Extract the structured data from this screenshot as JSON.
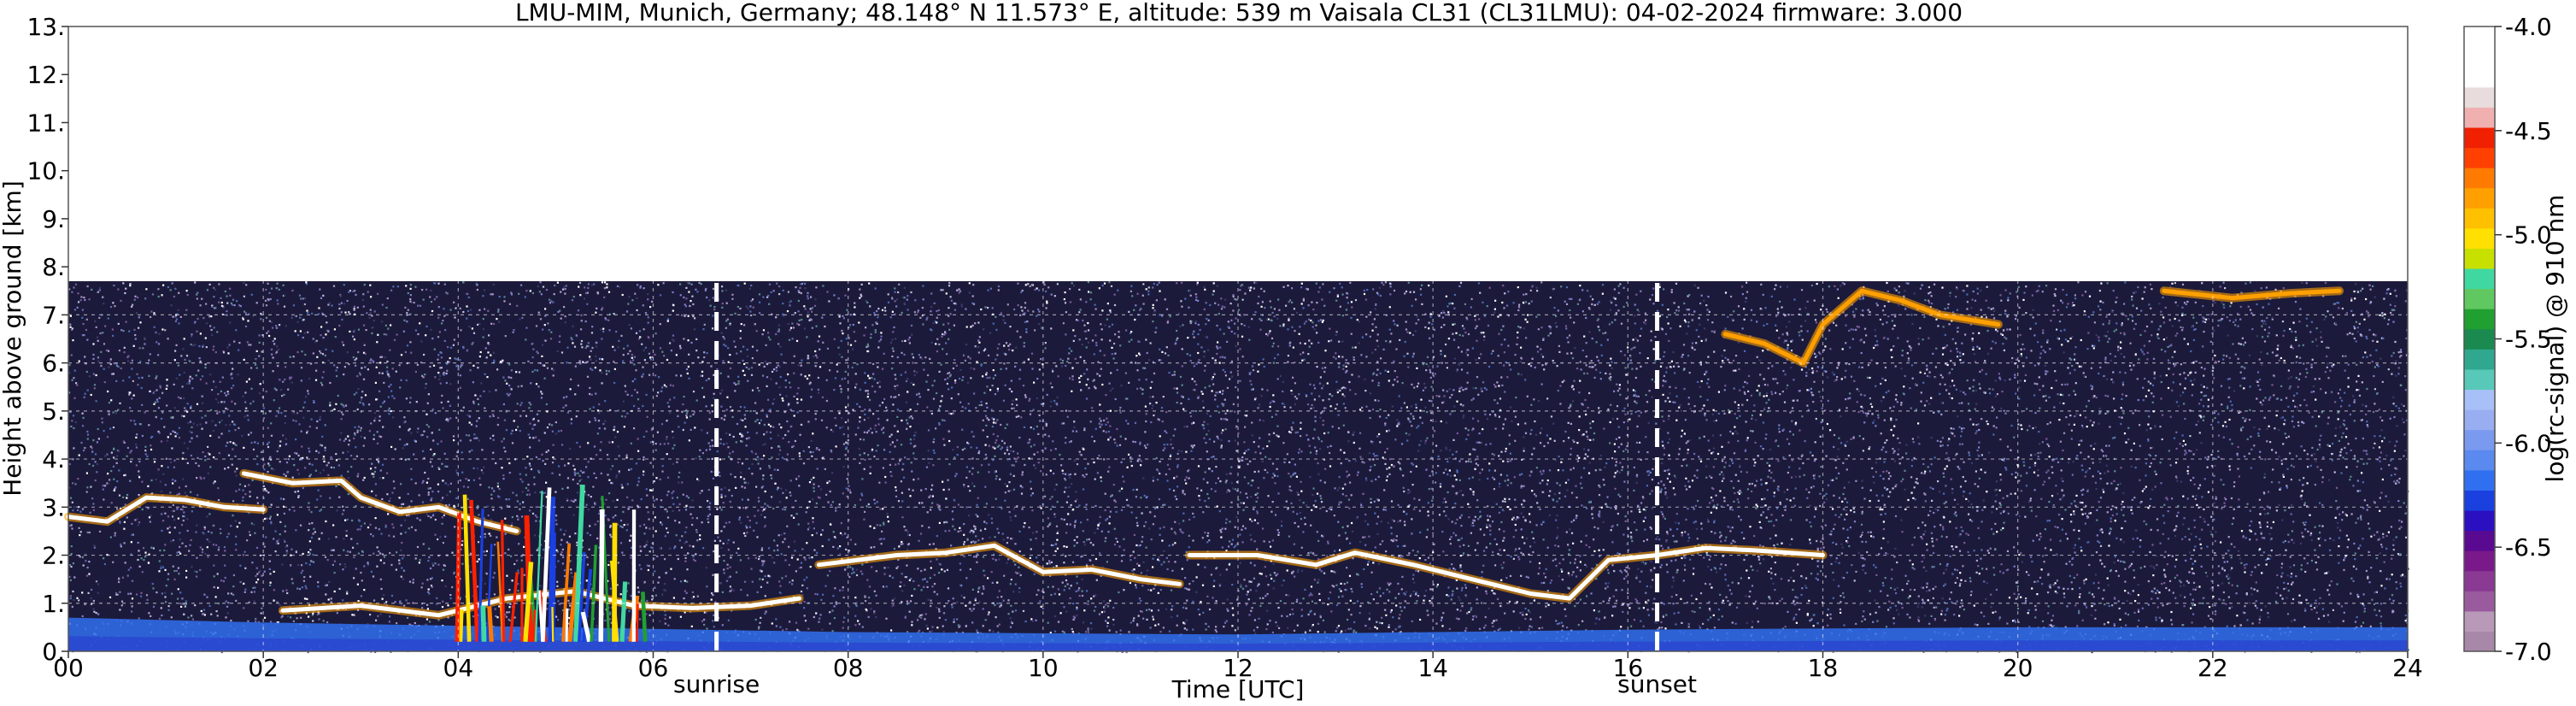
{
  "chart_data": {
    "type": "heatmap",
    "title": "LMU-MIM, Munich, Germany; 48.148° N 11.573° E, altitude: 539 m    Vaisala CL31 (CL31LMU): 04-02-2024    firmware: 3.000",
    "xlabel": "Time [UTC]",
    "ylabel": "Height above ground [km]",
    "xlim": [
      0,
      24
    ],
    "ylim": [
      0,
      13
    ],
    "x_ticks": [
      {
        "value": 0,
        "label": "00"
      },
      {
        "value": 2,
        "label": "02"
      },
      {
        "value": 4,
        "label": "04"
      },
      {
        "value": 6,
        "label": "06"
      },
      {
        "value": 8,
        "label": "08"
      },
      {
        "value": 10,
        "label": "10"
      },
      {
        "value": 12,
        "label": "12"
      },
      {
        "value": 14,
        "label": "14"
      },
      {
        "value": 16,
        "label": "16"
      },
      {
        "value": 18,
        "label": "18"
      },
      {
        "value": 20,
        "label": "20"
      },
      {
        "value": 22,
        "label": "22"
      },
      {
        "value": 24,
        "label": "24"
      }
    ],
    "y_ticks": [
      {
        "value": 0,
        "label": "0."
      },
      {
        "value": 1,
        "label": "1."
      },
      {
        "value": 2,
        "label": "2."
      },
      {
        "value": 3,
        "label": "3."
      },
      {
        "value": 4,
        "label": "4."
      },
      {
        "value": 5,
        "label": "5."
      },
      {
        "value": 6,
        "label": "6."
      },
      {
        "value": 7,
        "label": "7."
      },
      {
        "value": 8,
        "label": "8."
      },
      {
        "value": 9,
        "label": "9."
      },
      {
        "value": 10,
        "label": "10."
      },
      {
        "value": 11,
        "label": "11."
      },
      {
        "value": 12,
        "label": "12."
      },
      {
        "value": 13,
        "label": "13."
      }
    ],
    "grid": true,
    "data_top_km": 7.7,
    "annotations": [
      {
        "name": "sunrise",
        "label": "sunrise",
        "time": 6.65
      },
      {
        "name": "sunset",
        "label": "sunset",
        "time": 16.3
      }
    ],
    "colorbar": {
      "label": "log(rc-signal) @ 910 nm",
      "range": [
        -7.0,
        -4.0
      ],
      "ticks": [
        {
          "value": -4.0,
          "label": "-4.0"
        },
        {
          "value": -4.5,
          "label": "-4.5"
        },
        {
          "value": -5.0,
          "label": "-5.0"
        },
        {
          "value": -5.5,
          "label": "-5.5"
        },
        {
          "value": -6.0,
          "label": "-6.0"
        },
        {
          "value": -6.5,
          "label": "-6.5"
        },
        {
          "value": -7.0,
          "label": "-7.0"
        }
      ],
      "colors": [
        "#a888a8",
        "#b899b8",
        "#9a5a9e",
        "#8a3a92",
        "#7a1a8a",
        "#5a0a90",
        "#2a10c0",
        "#1a40e0",
        "#3070f0",
        "#5a8af0",
        "#7a9af0",
        "#98aef0",
        "#a8c0f8",
        "#58c8b8",
        "#30a890",
        "#1a8a50",
        "#20a030",
        "#60c860",
        "#40d8a0",
        "#c8e000",
        "#ffe000",
        "#ffc000",
        "#ffa000",
        "#ff7a00",
        "#ff4000",
        "#f02000",
        "#f0b0b0",
        "#e8dcdc",
        "#ffffff",
        "#ffffff",
        "#ffffff"
      ]
    },
    "features": [
      {
        "name": "aerosol-boundary-layer",
        "type": "band",
        "t0": 0,
        "t1": 24,
        "h0": 0,
        "h1": [
          [
            0,
            0.7
          ],
          [
            2,
            0.6
          ],
          [
            5,
            0.5
          ],
          [
            8,
            0.4
          ],
          [
            12,
            0.35
          ],
          [
            16,
            0.45
          ],
          [
            20,
            0.5
          ],
          [
            24,
            0.5
          ]
        ],
        "value": -6.2
      },
      {
        "name": "cloud-layer-morning",
        "type": "line",
        "value": -4.0,
        "points": [
          [
            0,
            2.8
          ],
          [
            0.4,
            2.7
          ],
          [
            0.8,
            3.2
          ],
          [
            1.2,
            3.15
          ],
          [
            1.6,
            3.0
          ],
          [
            2.0,
            2.95
          ]
        ]
      },
      {
        "name": "cloud-layer-morning-2",
        "type": "line",
        "value": -4.0,
        "points": [
          [
            1.8,
            3.7
          ],
          [
            2.3,
            3.5
          ],
          [
            2.8,
            3.55
          ],
          [
            3.0,
            3.2
          ],
          [
            3.4,
            2.9
          ],
          [
            3.8,
            3.0
          ],
          [
            4.2,
            2.7
          ],
          [
            4.6,
            2.5
          ]
        ]
      },
      {
        "name": "cloud-layer-low-dawn",
        "type": "line",
        "value": -4.0,
        "points": [
          [
            2.2,
            0.85
          ],
          [
            3.0,
            0.95
          ],
          [
            3.8,
            0.75
          ],
          [
            4.5,
            1.1
          ],
          [
            5.2,
            1.25
          ],
          [
            5.8,
            0.95
          ],
          [
            6.4,
            0.9
          ],
          [
            7.0,
            0.95
          ],
          [
            7.5,
            1.1
          ]
        ]
      },
      {
        "name": "precip-streaks-dawn",
        "type": "streaks",
        "value": -5.0,
        "t0": 4.0,
        "t1": 5.9,
        "h_top": 3.5,
        "h_bot": 0.2
      },
      {
        "name": "cloud-layer-midday",
        "type": "line",
        "value": -4.0,
        "points": [
          [
            7.7,
            1.8
          ],
          [
            8.5,
            2.0
          ],
          [
            9.0,
            2.05
          ],
          [
            9.5,
            2.2
          ],
          [
            10.0,
            1.65
          ],
          [
            10.5,
            1.7
          ],
          [
            11.0,
            1.5
          ],
          [
            11.4,
            1.4
          ]
        ]
      },
      {
        "name": "cloud-layer-afternoon",
        "type": "line",
        "value": -4.0,
        "points": [
          [
            11.5,
            2.0
          ],
          [
            12.2,
            2.0
          ],
          [
            12.8,
            1.8
          ],
          [
            13.2,
            2.05
          ],
          [
            13.8,
            1.8
          ],
          [
            14.4,
            1.5
          ],
          [
            15.0,
            1.2
          ],
          [
            15.4,
            1.1
          ],
          [
            15.8,
            1.9
          ],
          [
            16.3,
            2.0
          ],
          [
            16.8,
            2.15
          ],
          [
            17.3,
            2.1
          ],
          [
            18.0,
            2.0
          ]
        ]
      },
      {
        "name": "cloud-layer-high-evening",
        "type": "line",
        "value": -4.8,
        "points": [
          [
            17.0,
            6.6
          ],
          [
            17.4,
            6.4
          ],
          [
            17.8,
            6.0
          ],
          [
            18.0,
            6.8
          ],
          [
            18.4,
            7.5
          ],
          [
            18.8,
            7.3
          ],
          [
            19.2,
            7.0
          ],
          [
            19.8,
            6.8
          ]
        ]
      },
      {
        "name": "cloud-layer-high-night",
        "type": "line",
        "value": -4.8,
        "points": [
          [
            21.5,
            7.5
          ],
          [
            22.2,
            7.35
          ],
          [
            22.8,
            7.45
          ],
          [
            23.3,
            7.5
          ]
        ]
      }
    ]
  }
}
